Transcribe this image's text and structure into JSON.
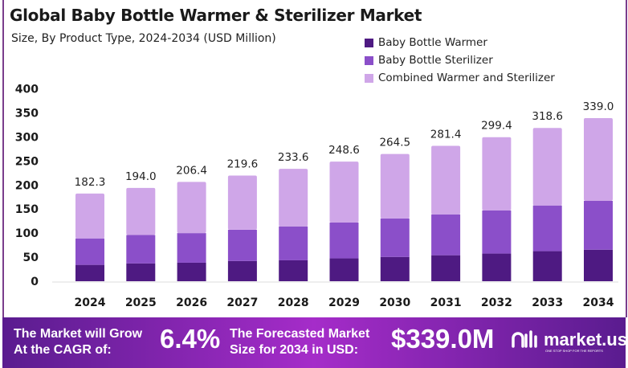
{
  "chart_data": {
    "type": "bar",
    "stacked": true,
    "title": "Global Baby Bottle Warmer & Sterilizer Market",
    "subtitle": "Size, By Product Type, 2024-2034 (USD Million)",
    "categories": [
      "2024",
      "2025",
      "2026",
      "2027",
      "2028",
      "2029",
      "2030",
      "2031",
      "2032",
      "2033",
      "2034"
    ],
    "series": [
      {
        "name": "Baby Bottle Warmer",
        "color": "#4e1a82",
        "values": [
          34,
          37,
          38.5,
          42,
          43.5,
          47.5,
          50.5,
          54,
          57.5,
          62.5,
          65.5
        ]
      },
      {
        "name": "Baby Bottle Sterilizer",
        "color": "#8b4fc9",
        "values": [
          55,
          59,
          61.5,
          65,
          70.5,
          74.5,
          80,
          85,
          89.5,
          95,
          101.5
        ]
      },
      {
        "name": "Combined Warmer and Sterilizer",
        "color": "#cfa6e8",
        "values": [
          93.3,
          98.0,
          106.4,
          112.6,
          119.6,
          126.6,
          134.0,
          142.4,
          152.4,
          161.1,
          172.0
        ]
      }
    ],
    "totals": [
      "182.3",
      "194.0",
      "206.4",
      "219.6",
      "233.6",
      "248.6",
      "264.5",
      "281.4",
      "299.4",
      "318.6",
      "339.0"
    ],
    "yticks": [
      "0",
      "50",
      "100",
      "150",
      "200",
      "250",
      "300",
      "350",
      "400"
    ],
    "ylim": [
      0,
      400
    ],
    "grid": false,
    "legend": "top-right"
  },
  "banner": {
    "cagr_label_1": "The Market will Grow",
    "cagr_label_2": "At the CAGR of:",
    "cagr_value": "6.4%",
    "forecast_label_1": "The Forecasted Market",
    "forecast_label_2": "Size for 2034 in USD:",
    "forecast_value": "$339.0M",
    "logo_name": "market.us",
    "logo_tagline": "ONE STOP SHOP FOR THE REPORTS"
  }
}
